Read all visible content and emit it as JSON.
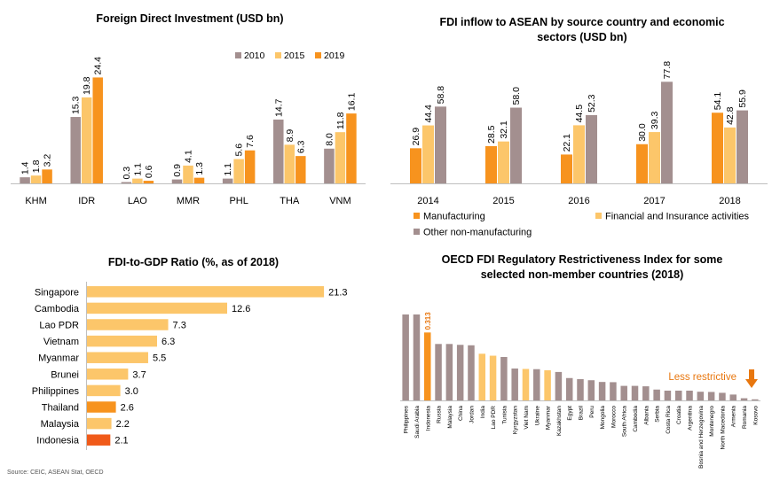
{
  "source": "Source: CEIC, ASEAN Stat, OECD",
  "colors": {
    "c2010": "#a38f8f",
    "c2015": "#fcc66a",
    "c2019": "#f7931e",
    "manufacturing": "#f7931e",
    "financial": "#fcc66a",
    "other": "#a38f8f",
    "indonesia_bar": "#f05a19",
    "thailand_bar": "#f7931e",
    "default_bar": "#fcc66a",
    "oecd_highlight": "#fcc66a",
    "oecd_default": "#a38f8f",
    "annotation": "#e8770f"
  },
  "chart_data": [
    {
      "type": "bar",
      "title": "Foreign Direct Investment (USD bn)",
      "categories": [
        "KHM",
        "IDR",
        "LAO",
        "MMR",
        "PHL",
        "THA",
        "VNM"
      ],
      "series": [
        {
          "name": "2010",
          "values": [
            1.4,
            15.3,
            0.3,
            0.9,
            1.1,
            14.7,
            8.0
          ],
          "labels": [
            "1.4",
            "15.3",
            "0.3",
            "0.9",
            "1.1",
            "14.7",
            "8.0"
          ]
        },
        {
          "name": "2015",
          "values": [
            1.8,
            19.8,
            1.1,
            4.1,
            5.6,
            8.9,
            11.8
          ],
          "labels": [
            "1.8",
            "19.8",
            "1.1",
            "4.1",
            "5.6",
            "8.9",
            "11.8"
          ]
        },
        {
          "name": "2019",
          "values": [
            3.2,
            24.4,
            0.6,
            1.3,
            7.6,
            6.3,
            16.1
          ],
          "labels": [
            "3.2",
            "24.4",
            "0.6",
            "1.3",
            "7.6",
            "6.3",
            "16.1"
          ]
        }
      ],
      "ylim": [
        0,
        30
      ],
      "legend": "top-right"
    },
    {
      "type": "bar",
      "title": "FDI inflow to ASEAN by source country and economic sectors (USD bn)",
      "title_lines": [
        "FDI inflow to ASEAN by source country and economic",
        "sectors (USD bn)"
      ],
      "categories": [
        "2014",
        "2015",
        "2016",
        "2017",
        "2018"
      ],
      "series": [
        {
          "name": "Manufacturing",
          "values": [
            26.9,
            28.5,
            22.1,
            30.0,
            54.1
          ],
          "labels": [
            "26.9",
            "28.5",
            "22.1",
            "30.0",
            "54.1"
          ]
        },
        {
          "name": "Financial and Insurance activities",
          "values": [
            44.4,
            32.1,
            44.5,
            39.3,
            42.8
          ],
          "labels": [
            "44.4",
            "32.1",
            "44.5",
            "39.3",
            "42.8"
          ]
        },
        {
          "name": "Other non-manufacturing",
          "values": [
            58.8,
            58.0,
            52.3,
            77.8,
            55.9
          ],
          "labels": [
            "58.8",
            "58.0",
            "52.3",
            "77.8",
            "55.9"
          ]
        }
      ],
      "ylim": [
        0,
        90
      ],
      "legend": "bottom"
    },
    {
      "type": "bar",
      "orientation": "horizontal",
      "title": "FDI-to-GDP Ratio (%, as of 2018)",
      "categories": [
        "Singapore",
        "Cambodia",
        "Lao PDR",
        "Vietnam",
        "Myanmar",
        "Brunei",
        "Philippines",
        "Thailand",
        "Malaysia",
        "Indonesia"
      ],
      "values": [
        21.3,
        12.6,
        7.3,
        6.3,
        5.5,
        3.7,
        3.0,
        2.6,
        2.2,
        2.1
      ],
      "labels": [
        "21.3",
        "12.6",
        "7.3",
        "6.3",
        "5.5",
        "3.7",
        "3.0",
        "2.6",
        "2.2",
        "2.1"
      ],
      "xlim": [
        0,
        22
      ]
    },
    {
      "type": "bar",
      "title": "OECD FDI Regulatory Restrictiveness Index for some selected non-member countries (2018)",
      "title_lines": [
        "OECD FDI Regulatory Restrictiveness Index for some",
        "selected non-member countries (2018)"
      ],
      "categories": [
        "Philippines",
        "Saudi Arabia",
        "Indonesia",
        "Russia",
        "Malaysia",
        "China",
        "Jordan",
        "India",
        "Lao PDR",
        "Tunisia",
        "Kyrgyzstan",
        "Viet Nam",
        "Ukraine",
        "Myanmar",
        "Kazakhstan",
        "Egypt",
        "Brazil",
        "Peru",
        "Mongolia",
        "Morocco",
        "South Africa",
        "Cambodia",
        "Albania",
        "Serbia",
        "Costa Rica",
        "Croatia",
        "Argentina",
        "Bosnia and Herzegovina",
        "Montenegro",
        "North Macedonia",
        "Armenia",
        "Romania",
        "Kosovo"
      ],
      "values": [
        0.396,
        0.396,
        0.313,
        0.26,
        0.26,
        0.256,
        0.254,
        0.215,
        0.206,
        0.2,
        0.147,
        0.145,
        0.144,
        0.139,
        0.131,
        0.103,
        0.098,
        0.093,
        0.085,
        0.084,
        0.067,
        0.067,
        0.065,
        0.05,
        0.045,
        0.045,
        0.045,
        0.04,
        0.039,
        0.035,
        0.027,
        0.01,
        0.005
      ],
      "highlight": [
        "Indonesia",
        "India",
        "Lao PDR",
        "Viet Nam",
        "Myanmar"
      ],
      "emphasis": "Indonesia",
      "annotations": [
        {
          "text": "0.313",
          "target": "Indonesia"
        },
        {
          "text": "Less restrictive"
        }
      ],
      "ylim": [
        0,
        0.45
      ]
    }
  ]
}
